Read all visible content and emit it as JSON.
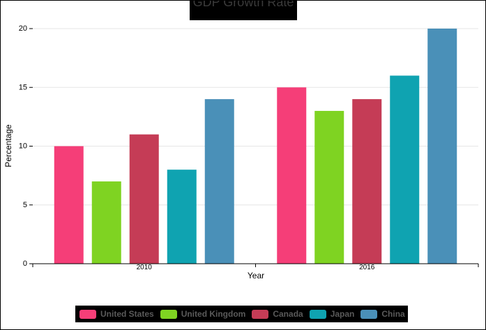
{
  "chart_data": {
    "type": "bar",
    "title": "GDP Growth Rate",
    "xlabel": "Year",
    "ylabel": "Percentage",
    "categories": [
      "2010",
      "2016"
    ],
    "ylim": [
      0,
      20
    ],
    "yticks": [
      0,
      5,
      10,
      15,
      20
    ],
    "grid": true,
    "legend_position": "bottom",
    "series": [
      {
        "name": "United States",
        "color": "#f53e78",
        "values": [
          10,
          15
        ]
      },
      {
        "name": "United Kingdom",
        "color": "#7fd322",
        "values": [
          7,
          13
        ]
      },
      {
        "name": "Canada",
        "color": "#c53c56",
        "values": [
          11,
          14
        ]
      },
      {
        "name": "Japan",
        "color": "#0fa3b1",
        "values": [
          8,
          16
        ]
      },
      {
        "name": "China",
        "color": "#4a90b8",
        "values": [
          14,
          20
        ]
      }
    ]
  }
}
